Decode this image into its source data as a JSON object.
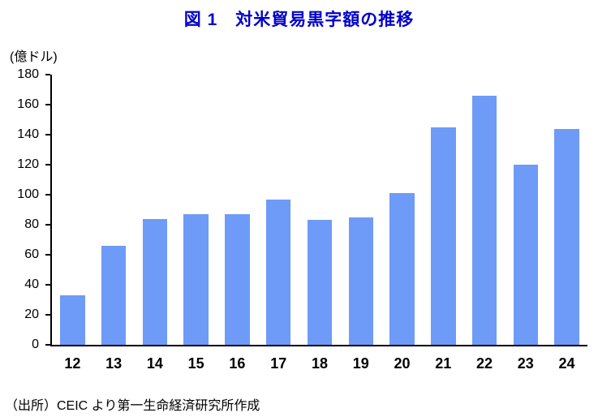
{
  "title": "図 1　対米貿易黒字額の推移",
  "unit_label": "(億ドル)",
  "source": "（出所）CEIC より第一生命経済研究所作成",
  "colors": {
    "bar": "#6d9bf7",
    "title": "#0000cc",
    "axis": "#000000"
  },
  "chart_data": {
    "type": "bar",
    "categories": [
      "12",
      "13",
      "14",
      "15",
      "16",
      "17",
      "18",
      "19",
      "20",
      "21",
      "22",
      "23",
      "24"
    ],
    "values": [
      33,
      66,
      84,
      87,
      87,
      97,
      83,
      85,
      101,
      145,
      166,
      120,
      144
    ],
    "title": "図 1　対米貿易黒字額の推移",
    "xlabel": "",
    "ylabel": "(億ドル)",
    "ylim": [
      0,
      180
    ],
    "ytick_step": 20,
    "grid": false,
    "legend": "none"
  }
}
